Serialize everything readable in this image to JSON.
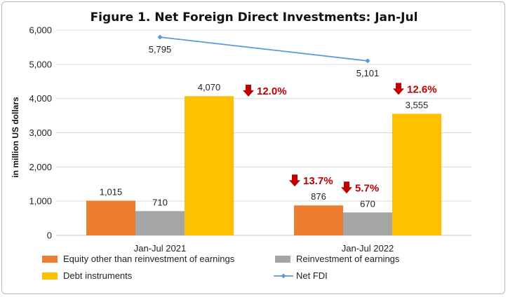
{
  "chart_data": {
    "type": "bar",
    "title": "Figure 1. Net Foreign Direct Investments: Jan-Jul",
    "ylabel": "in million US dollars",
    "xlabel": "",
    "ylim": [
      0,
      6000
    ],
    "yticks": [
      "0",
      "1,000",
      "2,000",
      "3,000",
      "4,000",
      "5,000",
      "6,000"
    ],
    "grid": true,
    "legend_position": "bottom",
    "categories": [
      "Jan-Jul 2021",
      "Jan-Jul 2022"
    ],
    "series": [
      {
        "name": "Equity other than reinvestment of earnings",
        "kind": "bar",
        "color": "#ed7d31",
        "values": [
          1015,
          876
        ],
        "labels": [
          "1,015",
          "876"
        ]
      },
      {
        "name": "Reinvestment of earnings",
        "kind": "bar",
        "color": "#a5a5a5",
        "values": [
          710,
          670
        ],
        "labels": [
          "710",
          "670"
        ]
      },
      {
        "name": "Debt instruments",
        "kind": "bar",
        "color": "#ffc000",
        "values": [
          4070,
          3555
        ],
        "labels": [
          "4,070",
          "3,555"
        ]
      },
      {
        "name": "Net FDI",
        "kind": "line",
        "color": "#5b9bd5",
        "values": [
          5795,
          5101
        ],
        "labels": [
          "5,795",
          "5,101"
        ]
      }
    ],
    "annotations": [
      {
        "text": "12.0%",
        "direction": "down",
        "applies_to": "Net FDI"
      },
      {
        "text": "13.7%",
        "direction": "down",
        "applies_to": "Equity other than reinvestment of earnings"
      },
      {
        "text": "5.7%",
        "direction": "down",
        "applies_to": "Reinvestment of earnings"
      },
      {
        "text": "12.6%",
        "direction": "down",
        "applies_to": "Debt instruments"
      }
    ],
    "annotation_color": "#c00000"
  }
}
